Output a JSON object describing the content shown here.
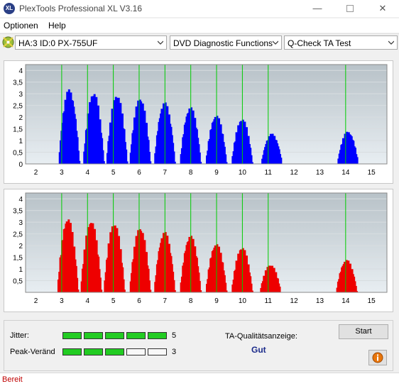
{
  "window": {
    "title": "PlexTools Professional XL V3.16",
    "icon_label": "XL",
    "minimize_icon": "minimize-icon",
    "maximize_icon": "maximize-icon",
    "close_icon": "close-icon"
  },
  "menu": {
    "items": [
      "Optionen",
      "Help"
    ]
  },
  "toolbar": {
    "drive": "HA:3 ID:0  PX-755UF",
    "function": "DVD Diagnostic Functions",
    "test": "Q-Check TA Test"
  },
  "colors": {
    "top_series": "#0000ff",
    "bottom_series": "#ee0000",
    "marker": "#00cc00",
    "plot_bg_top": "#b8c2c8",
    "plot_bg_bottom": "#e8eef2"
  },
  "chart_data": [
    {
      "type": "bar",
      "series_color": "#0000ff",
      "ylim": [
        0,
        4.25
      ],
      "xlim": [
        1.6,
        15.6
      ],
      "x_ticks": [
        "2",
        "3",
        "4",
        "5",
        "6",
        "7",
        "8",
        "9",
        "10",
        "11",
        "12",
        "13",
        "14",
        "15"
      ],
      "y_ticks": [
        "0",
        "0,5",
        "1",
        "1,5",
        "2",
        "2,5",
        "3",
        "3,5",
        "4"
      ],
      "markers": [
        3,
        4,
        5,
        6,
        7,
        8,
        9,
        10,
        11,
        14
      ],
      "peaks": [
        {
          "x": 3.25,
          "value": 3.2
        },
        {
          "x": 4.2,
          "value": 3.1
        },
        {
          "x": 5.1,
          "value": 3.0
        },
        {
          "x": 6.0,
          "value": 2.85
        },
        {
          "x": 6.95,
          "value": 2.65
        },
        {
          "x": 7.95,
          "value": 2.45
        },
        {
          "x": 8.95,
          "value": 2.1
        },
        {
          "x": 9.95,
          "value": 1.95
        },
        {
          "x": 11.1,
          "value": 1.3
        },
        {
          "x": 14.05,
          "value": 1.4
        }
      ]
    },
    {
      "type": "bar",
      "series_color": "#ee0000",
      "ylim": [
        0,
        4.25
      ],
      "xlim": [
        1.6,
        15.6
      ],
      "x_ticks": [
        "2",
        "3",
        "4",
        "5",
        "6",
        "7",
        "8",
        "9",
        "10",
        "11",
        "12",
        "13",
        "14",
        "15"
      ],
      "y_ticks": [
        "0,5",
        "1",
        "1,5",
        "2",
        "2,5",
        "3",
        "3,5",
        "4"
      ],
      "markers": [
        3,
        4,
        5,
        6,
        7,
        8,
        9,
        10,
        11,
        14
      ],
      "peaks": [
        {
          "x": 3.2,
          "value": 3.2
        },
        {
          "x": 4.1,
          "value": 3.1
        },
        {
          "x": 5.0,
          "value": 3.0
        },
        {
          "x": 6.0,
          "value": 2.8
        },
        {
          "x": 6.95,
          "value": 2.6
        },
        {
          "x": 7.95,
          "value": 2.45
        },
        {
          "x": 8.95,
          "value": 2.1
        },
        {
          "x": 9.95,
          "value": 1.95
        },
        {
          "x": 11.05,
          "value": 1.2
        },
        {
          "x": 14.0,
          "value": 1.4
        }
      ]
    }
  ],
  "quality": {
    "jitter_label": "Jitter:",
    "jitter_value": "5",
    "jitter_level": 5,
    "peak_label": "Peak-Veränd",
    "peak_value": "3",
    "peak_level": 3,
    "max_level": 5,
    "ta_label": "TA-Qualitätsanzeige:",
    "ta_result": "Gut",
    "start_label": "Start",
    "info_icon": "info-icon"
  },
  "status": {
    "text": "Bereit"
  }
}
